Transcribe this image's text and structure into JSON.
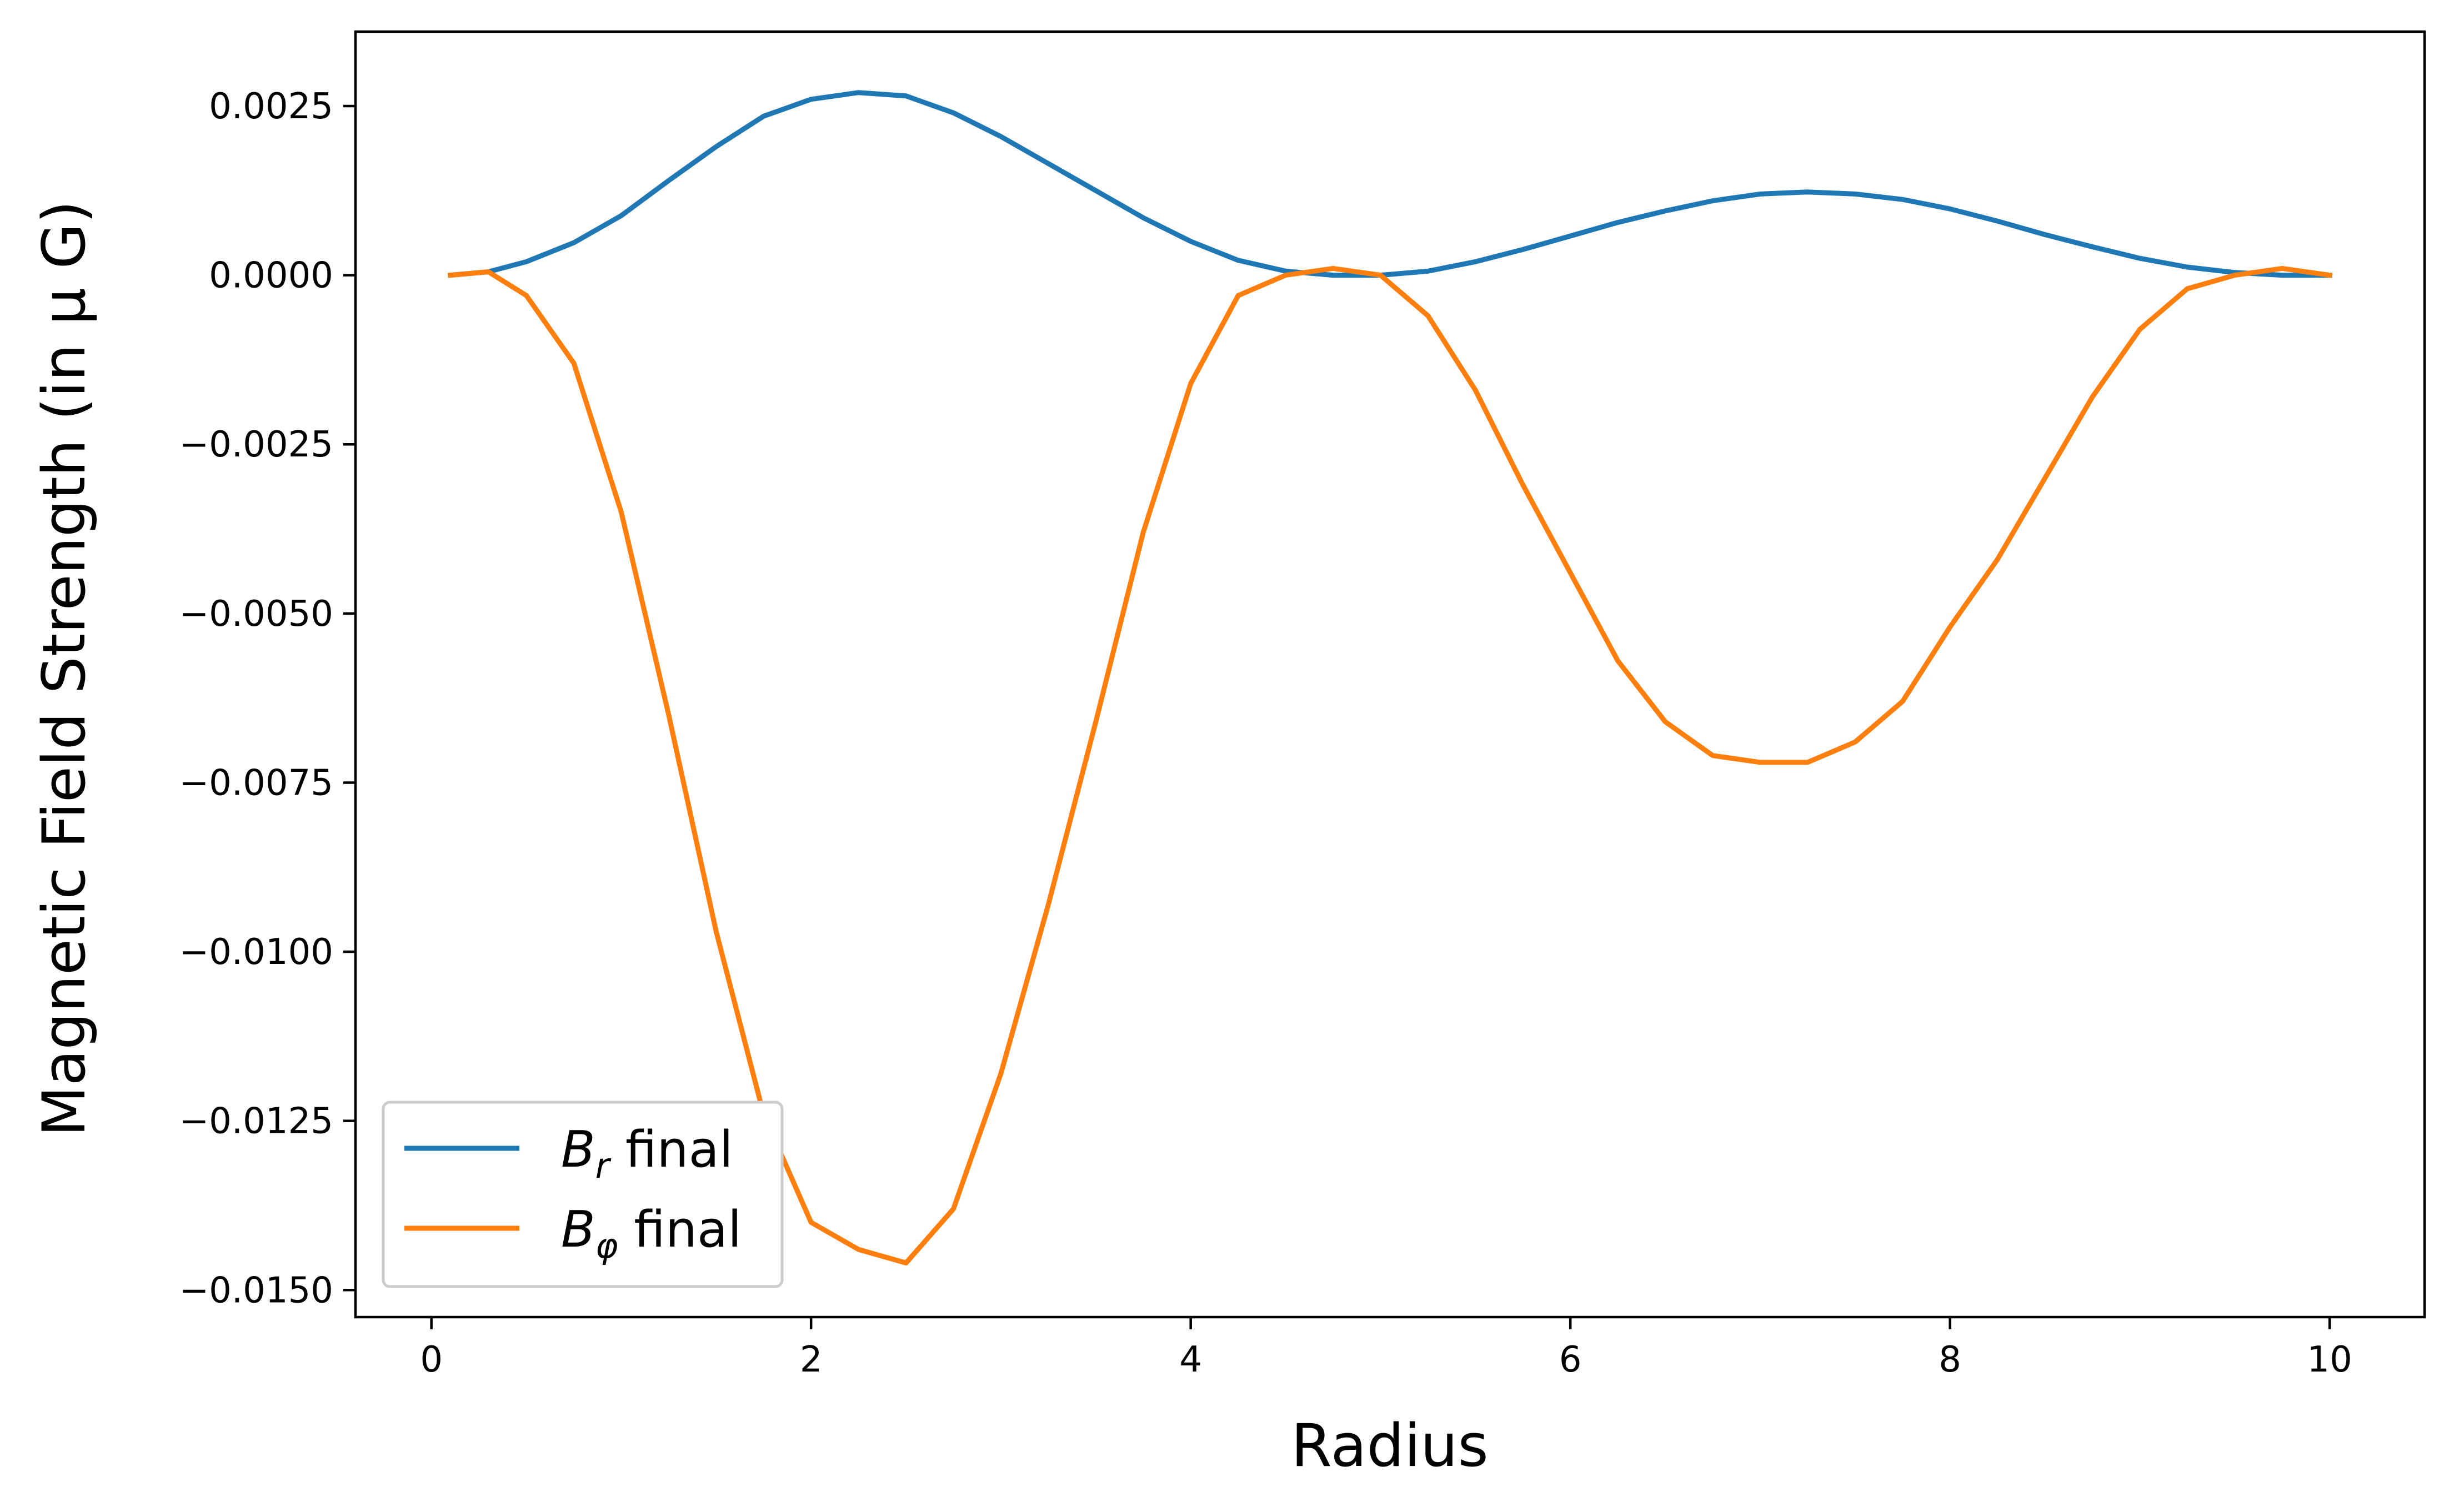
{
  "chart_data": {
    "type": "line",
    "xlabel": "Radius",
    "ylabel": "Magnetic Field Strength (in μ G)",
    "xlim": [
      -0.4,
      10.5
    ],
    "ylim": [
      -0.0154,
      0.0036
    ],
    "xticks": [
      0,
      2,
      4,
      6,
      8,
      10
    ],
    "xtick_labels": [
      "0",
      "2",
      "4",
      "6",
      "8",
      "10"
    ],
    "yticks": [
      0.0025,
      0.0,
      -0.0025,
      -0.005,
      -0.0075,
      -0.01,
      -0.0125,
      -0.015
    ],
    "ytick_labels": [
      "0.0025",
      "0.0000",
      "−0.0025",
      "−0.0050",
      "−0.0075",
      "−0.0100",
      "−0.0125",
      "−0.0150"
    ],
    "grid": false,
    "legend_position": "lower-left",
    "x": [
      0.1,
      0.3,
      0.5,
      0.75,
      1.0,
      1.25,
      1.5,
      1.75,
      2.0,
      2.25,
      2.5,
      2.75,
      3.0,
      3.25,
      3.5,
      3.75,
      4.0,
      4.25,
      4.5,
      4.75,
      5.0,
      5.25,
      5.5,
      5.75,
      6.0,
      6.25,
      6.5,
      6.75,
      7.0,
      7.25,
      7.5,
      7.75,
      8.0,
      8.25,
      8.5,
      8.75,
      9.0,
      9.25,
      9.5,
      9.75,
      10.0
    ],
    "series": [
      {
        "name": "B_r final",
        "color": "#1f77b4",
        "values": [
          0.0,
          5e-05,
          0.0002,
          0.00048,
          0.00088,
          0.0014,
          0.0019,
          0.00235,
          0.0026,
          0.0027,
          0.00265,
          0.0024,
          0.00205,
          0.00165,
          0.00125,
          0.00085,
          0.0005,
          0.00022,
          6e-05,
          0.0,
          0.0,
          6e-05,
          0.0002,
          0.00038,
          0.00058,
          0.00078,
          0.00095,
          0.0011,
          0.0012,
          0.00123,
          0.0012,
          0.00112,
          0.00098,
          0.0008,
          0.0006,
          0.00042,
          0.00025,
          0.00012,
          4e-05,
          0.0,
          0.0
        ]
      },
      {
        "name": "B_φ final",
        "color": "#ff7f0e",
        "values": [
          0.0,
          5e-05,
          -0.0003,
          -0.0013,
          -0.0035,
          -0.0065,
          -0.0097,
          -0.0124,
          -0.014,
          -0.0144,
          -0.0146,
          -0.0138,
          -0.0118,
          -0.0093,
          -0.0066,
          -0.0038,
          -0.0016,
          -0.0003,
          0.0,
          0.0001,
          0.0,
          -0.0006,
          -0.0017,
          -0.0031,
          -0.0044,
          -0.0057,
          -0.0066,
          -0.0071,
          -0.0072,
          -0.0072,
          -0.0069,
          -0.0063,
          -0.0052,
          -0.0042,
          -0.003,
          -0.0018,
          -0.0008,
          -0.0002,
          0.0,
          0.0001,
          0.0
        ]
      }
    ]
  },
  "legend": {
    "entries": [
      {
        "symbol": "B",
        "subscript": "r",
        "suffix": " final",
        "color": "#1f77b4"
      },
      {
        "symbol": "B",
        "subscript": "φ",
        "suffix": " final",
        "color": "#ff7f0e"
      }
    ]
  }
}
